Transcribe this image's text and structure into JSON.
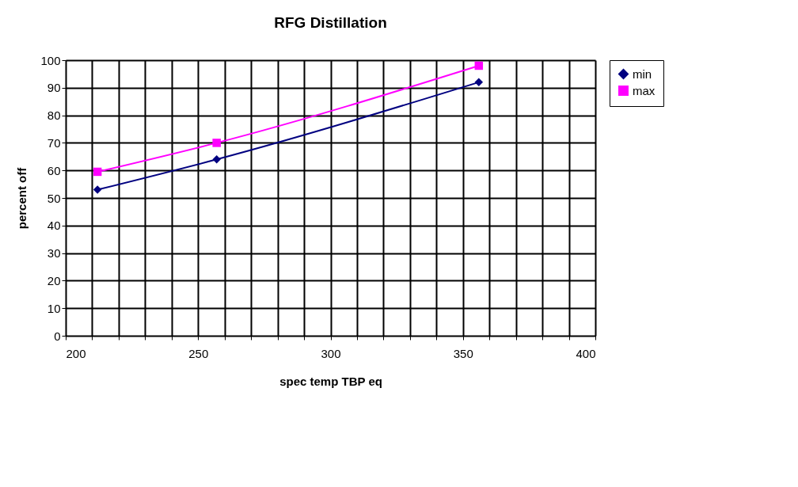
{
  "chart_data": {
    "type": "line",
    "title": "RFG Distillation",
    "xlabel": "spec temp TBP eq",
    "ylabel": "percent off",
    "series": [
      {
        "name": "min",
        "color": "#000080",
        "marker": "diamond",
        "x": [
          212,
          257,
          356
        ],
        "values": [
          53,
          64,
          92
        ]
      },
      {
        "name": "max",
        "color": "#ff00ff",
        "marker": "square",
        "x": [
          212,
          257,
          356
        ],
        "values": [
          59.5,
          70,
          98
        ]
      }
    ],
    "xlim": [
      200,
      400
    ],
    "xticks": [
      200,
      {
        "value": 210,
        "label": null
      },
      {
        "value": 220,
        "label": null
      },
      {
        "value": 230,
        "label": null
      },
      {
        "value": 240,
        "label": null
      },
      250,
      {
        "value": 260,
        "label": null
      },
      {
        "value": 270,
        "label": null
      },
      {
        "value": 280,
        "label": null
      },
      {
        "value": 290,
        "label": null
      },
      300,
      {
        "value": 310,
        "label": null
      },
      {
        "value": 320,
        "label": null
      },
      {
        "value": 330,
        "label": null
      },
      {
        "value": 340,
        "label": null
      },
      350,
      {
        "value": 360,
        "label": null
      },
      {
        "value": 370,
        "label": null
      },
      {
        "value": 380,
        "label": null
      },
      {
        "value": 390,
        "label": null
      },
      400
    ],
    "ylim": [
      0,
      100
    ],
    "yticks": [
      0,
      10,
      20,
      30,
      40,
      50,
      60,
      70,
      80,
      90,
      100
    ],
    "grid": true,
    "legend": "right",
    "line_style": "solid"
  }
}
